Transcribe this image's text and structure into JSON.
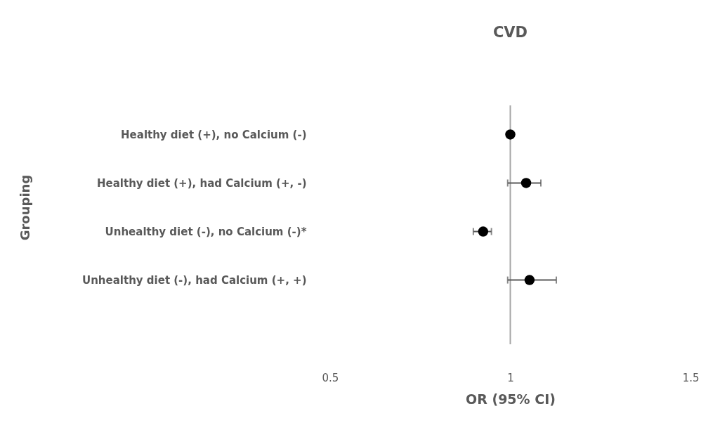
{
  "chart_data": {
    "type": "scatter",
    "title": "CVD",
    "xlabel": "OR (95% CI)",
    "ylabel": "Grouping",
    "orientation": "horizontal",
    "marker": "circle",
    "grid": false,
    "categories": [
      "Healthy diet (+), no Calcium (-)",
      "Healthy diet (+), had Calcium (+, -)",
      "Unhealthy diet  (-), no Calcium (-)*",
      "Unhealthy diet  (-), had Calcium (+, +)"
    ],
    "series": [
      {
        "color": "#000000",
        "values": [
          1.0,
          1.042,
          0.928,
          1.051
        ],
        "errors": [
          null,
          [
            0.993,
            1.081
          ],
          [
            0.902,
            0.95
          ],
          [
            0.993,
            1.122
          ]
        ]
      }
    ],
    "xlim": [
      0.5,
      1.5
    ],
    "xticks": [
      0.5,
      1,
      1.5
    ],
    "ref_lines": [
      {
        "axis": "x",
        "value": 1,
        "color": "#a6a6a6"
      }
    ]
  }
}
